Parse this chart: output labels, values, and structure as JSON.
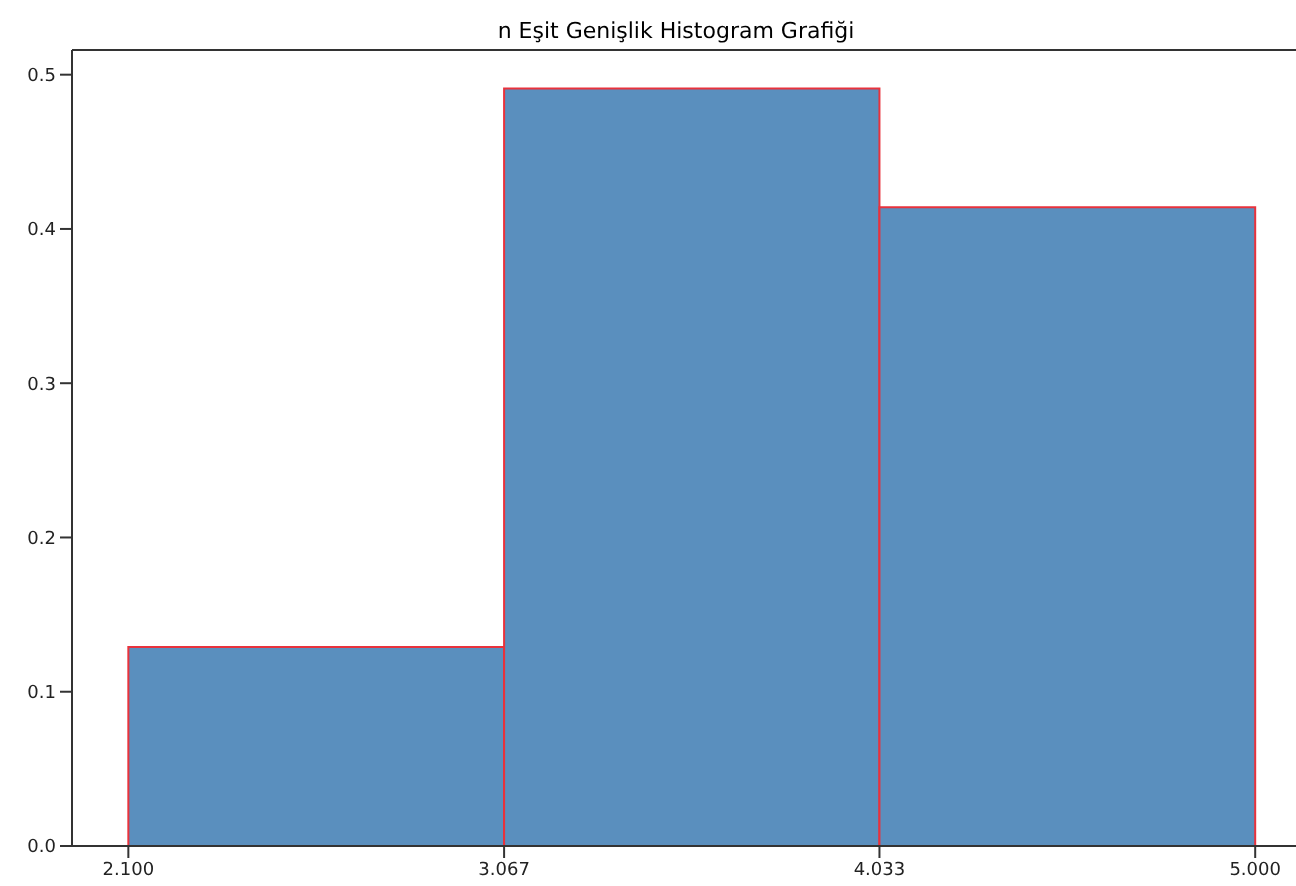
{
  "chart_data": {
    "type": "histogram",
    "title": "n Eşit Genişlik Histogram Grafiği",
    "bins": [
      2.1,
      3.067,
      4.033,
      5.0
    ],
    "values": [
      0.129,
      0.491,
      0.414
    ],
    "color": "#5a8fbe",
    "xlim": [
      1.955,
      5.105
    ],
    "xticks": [
      {
        "value": 2.1,
        "label": "2.100"
      },
      {
        "value": 3.067,
        "label": "3.067"
      },
      {
        "value": 4.033,
        "label": "4.033"
      },
      {
        "value": 5.0,
        "label": "5.000"
      }
    ],
    "ylim": [
      0,
      0.516
    ],
    "yticks": [
      {
        "value": 0,
        "label": "0.0"
      },
      {
        "value": 0.1,
        "label": "0.1"
      },
      {
        "value": 0.2,
        "label": "0.2"
      },
      {
        "value": 0.3,
        "label": "0.3"
      },
      {
        "value": 0.4,
        "label": "0.4"
      },
      {
        "value": 0.5,
        "label": "0.5"
      }
    ],
    "grid": false
  }
}
